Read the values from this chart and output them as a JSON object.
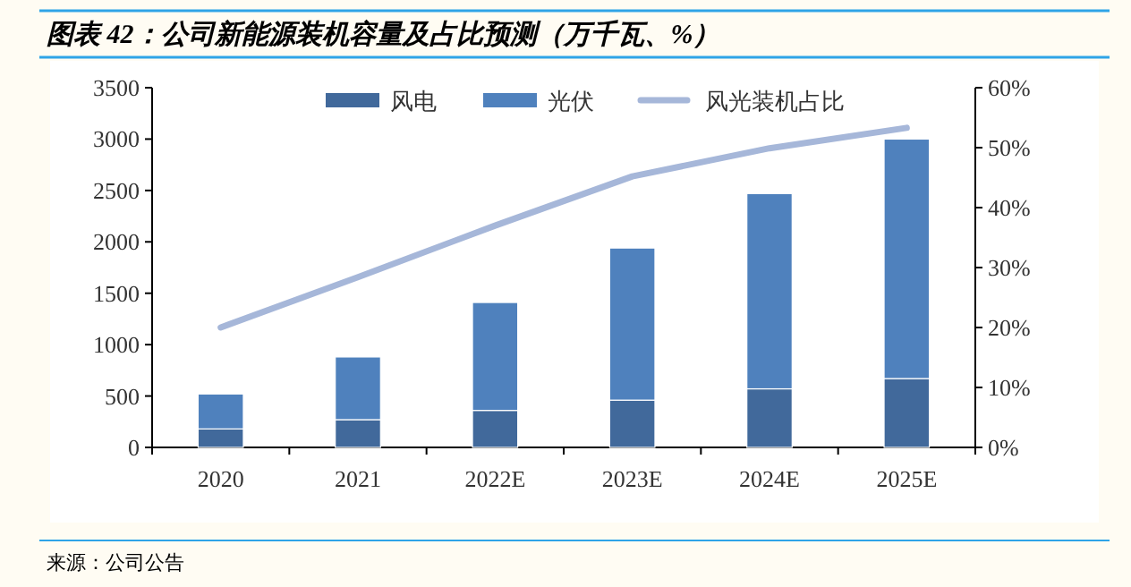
{
  "chart_data": {
    "type": "bar",
    "title": "图表 42：公司新能源装机容量及占比预测（万千瓦、%）",
    "categories": [
      "2020",
      "2021",
      "2022E",
      "2023E",
      "2024E",
      "2025E"
    ],
    "stacked": true,
    "legend": "top",
    "series": [
      {
        "name": "风电",
        "color": "#41699b",
        "values": [
          180,
          270,
          360,
          460,
          570,
          670
        ]
      },
      {
        "name": "光伏",
        "color": "#4f81bd",
        "values": [
          340,
          610,
          1050,
          1480,
          1900,
          2330
        ]
      },
      {
        "name": "风光装机占比",
        "type": "line",
        "axis": "y2",
        "color": "#a6b7d9",
        "values": [
          20,
          28.4,
          37,
          45.2,
          49.9,
          53.3
        ]
      }
    ],
    "ylim": [
      0,
      3500
    ],
    "yticks": [
      0,
      500,
      1000,
      1500,
      2000,
      2500,
      3000,
      3500
    ],
    "y2lim": [
      0,
      60
    ],
    "y2ticks": [
      {
        "value": 0,
        "label": "0%"
      },
      {
        "value": 10,
        "label": "10%"
      },
      {
        "value": 20,
        "label": "20%"
      },
      {
        "value": 30,
        "label": "30%"
      },
      {
        "value": 40,
        "label": "40%"
      },
      {
        "value": 50,
        "label": "50%"
      },
      {
        "value": 60,
        "label": "60%"
      }
    ],
    "annotations": [
      "来源：公司公告"
    ]
  }
}
